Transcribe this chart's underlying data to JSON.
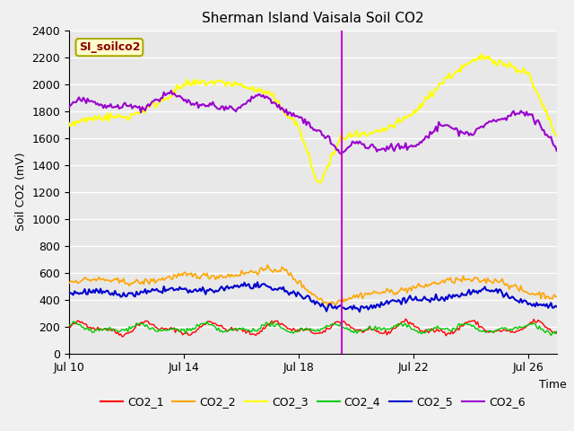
{
  "title": "Sherman Island Vaisala Soil CO2",
  "ylabel": "Soil CO2 (mV)",
  "xlabel": "Time",
  "legend_label": "SI_soilco2",
  "legend_label_color": "#8B0000",
  "legend_label_bg": "#FFFFCC",
  "ylim": [
    0,
    2400
  ],
  "yticks": [
    0,
    200,
    400,
    600,
    800,
    1000,
    1200,
    1400,
    1600,
    1800,
    2000,
    2200,
    2400
  ],
  "xtick_labels": [
    "Jul 10",
    "Jul 14",
    "Jul 18",
    "Jul 22",
    "Jul 26"
  ],
  "xtick_positions": [
    0,
    4,
    8,
    12,
    16
  ],
  "vline_pos": 9.5,
  "vline_color": "#CC00CC",
  "series_colors": {
    "CO2_1": "#FF0000",
    "CO2_2": "#FFA500",
    "CO2_3": "#FFFF00",
    "CO2_4": "#00CC00",
    "CO2_5": "#0000CD",
    "CO2_6": "#9900CC"
  },
  "bg_color": "#E8E8E8",
  "grid_color": "#FFFFFF"
}
